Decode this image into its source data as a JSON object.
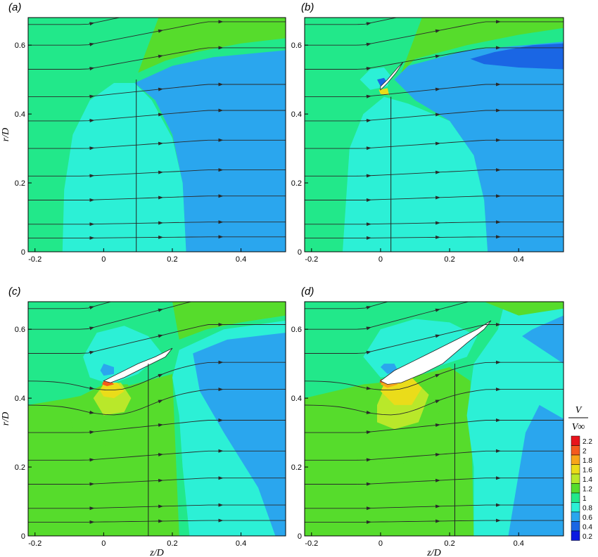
{
  "panels": [
    {
      "label": "(a)",
      "show_xlabel": false,
      "show_ylabel": true,
      "line_z": 0.095
    },
    {
      "label": "(b)",
      "show_xlabel": false,
      "show_ylabel": false,
      "line_z": 0.03
    },
    {
      "label": "(c)",
      "show_xlabel": true,
      "show_ylabel": true,
      "line_z": 0.13
    },
    {
      "label": "(d)",
      "show_xlabel": true,
      "show_ylabel": false,
      "line_z": 0.215
    }
  ],
  "axes": {
    "xlabel": "z/D",
    "ylabel": "r/D",
    "xlim": [
      -0.22,
      0.53
    ],
    "ylim": [
      0,
      0.68
    ],
    "xticks": [
      -0.2,
      0,
      0.2,
      0.4
    ],
    "xtick_labels": [
      "-0.2",
      "0",
      "0.2",
      "0.4"
    ],
    "yticks": [
      0,
      0.2,
      0.4,
      0.6
    ],
    "ytick_labels": [
      "0",
      "0.2",
      "0.4",
      "0.6"
    ]
  },
  "colorbar": {
    "title_num": "V",
    "title_den": "V∞",
    "levels": [
      2.2,
      2,
      1.8,
      1.6,
      1.4,
      1.2,
      1,
      0.8,
      0.6,
      0.4,
      0.2
    ],
    "labels": [
      "2.2",
      "2",
      "1.8",
      "1.6",
      "1.4",
      "1.2",
      "1",
      "0.8",
      "0.6",
      "0.4",
      "0.2"
    ],
    "colors": [
      "#e8141c",
      "#f55a1e",
      "#f8a51a",
      "#eadc1a",
      "#b9e82a",
      "#56dc2c",
      "#22e88a",
      "#2cf0d6",
      "#2aa6ee",
      "#1a66e4",
      "#0a1ae0"
    ]
  },
  "chart_data": {
    "type": "heatmap",
    "description_quantity": "V/V∞",
    "x": "z/D",
    "y": "r/D",
    "panels": [
      "(a)",
      "(b)",
      "(c)",
      "(d)"
    ],
    "xlim": [
      -0.22,
      0.53
    ],
    "ylim": [
      0,
      0.68
    ],
    "color_levels": [
      0.2,
      0.4,
      0.6,
      0.8,
      1,
      1.2,
      1.4,
      1.6,
      1.8,
      2,
      2.2
    ],
    "vertical_line_z": [
      0.095,
      0.03,
      0.13,
      0.215
    ]
  }
}
